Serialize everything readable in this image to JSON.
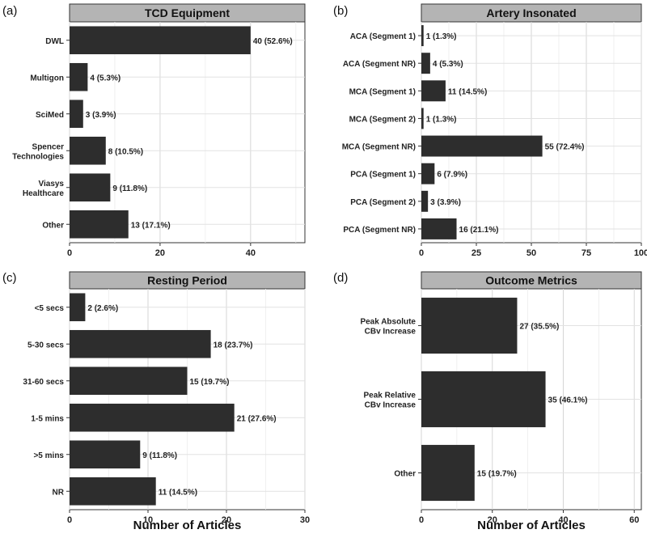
{
  "chart_data": [
    {
      "panel": "(a)",
      "type": "bar",
      "orientation": "horizontal",
      "title": "TCD Equipment",
      "xlabel": "",
      "categories": [
        "DWL",
        "Multigon",
        "SciMed",
        "Spencer Technologies",
        "Viasys Healthcare",
        "Other"
      ],
      "category_lines": [
        [
          "DWL"
        ],
        [
          "Multigon"
        ],
        [
          "SciMed"
        ],
        [
          "Spencer",
          "Technologies"
        ],
        [
          "Viasys",
          "Healthcare"
        ],
        [
          "Other"
        ]
      ],
      "values": [
        40,
        4,
        3,
        8,
        9,
        13
      ],
      "data_labels": [
        "40 (52.6%)",
        "4 (5.3%)",
        "3 (3.9%)",
        "8 (10.5%)",
        "9 (11.8%)",
        "13 (17.1%)"
      ],
      "xlim": [
        0,
        52
      ],
      "xticks": [
        0,
        20,
        40
      ],
      "grid": true
    },
    {
      "panel": "(b)",
      "type": "bar",
      "orientation": "horizontal",
      "title": "Artery Insonated",
      "xlabel": "",
      "categories": [
        "ACA (Segment 1)",
        "ACA (Segment NR)",
        "MCA (Segment 1)",
        "MCA (Segment 2)",
        "MCA (Segment NR)",
        "PCA (Segment 1)",
        "PCA (Segment 2)",
        "PCA (Segment NR)"
      ],
      "category_lines": [
        [
          "ACA (Segment 1)"
        ],
        [
          "ACA (Segment NR)"
        ],
        [
          "MCA (Segment 1)"
        ],
        [
          "MCA (Segment 2)"
        ],
        [
          "MCA (Segment NR)"
        ],
        [
          "PCA (Segment 1)"
        ],
        [
          "PCA (Segment 2)"
        ],
        [
          "PCA (Segment NR)"
        ]
      ],
      "values": [
        1,
        4,
        11,
        1,
        55,
        6,
        3,
        16
      ],
      "data_labels": [
        "1 (1.3%)",
        "4 (5.3%)",
        "11 (14.5%)",
        "1 (1.3%)",
        "55 (72.4%)",
        "6 (7.9%)",
        "3 (3.9%)",
        "16 (21.1%)"
      ],
      "xlim": [
        0,
        100
      ],
      "xticks": [
        0,
        25,
        50,
        75,
        100
      ],
      "grid": true
    },
    {
      "panel": "(c)",
      "type": "bar",
      "orientation": "horizontal",
      "title": "Resting Period",
      "xlabel": "Number of Articles",
      "categories": [
        "<5 secs",
        "5-30 secs",
        "31-60 secs",
        "1-5 mins",
        ">5 mins",
        "NR"
      ],
      "category_lines": [
        [
          "<5 secs"
        ],
        [
          "5-30 secs"
        ],
        [
          "31-60 secs"
        ],
        [
          "1-5 mins"
        ],
        [
          ">5 mins"
        ],
        [
          "NR"
        ]
      ],
      "values": [
        2,
        18,
        15,
        21,
        9,
        11
      ],
      "data_labels": [
        "2 (2.6%)",
        "18 (23.7%)",
        "15 (19.7%)",
        "21 (27.6%)",
        "9 (11.8%)",
        "11 (14.5%)"
      ],
      "xlim": [
        0,
        30
      ],
      "xticks": [
        0,
        10,
        20,
        30
      ],
      "grid": true
    },
    {
      "panel": "(d)",
      "type": "bar",
      "orientation": "horizontal",
      "title": "Outcome Metrics",
      "xlabel": "Number of Articles",
      "categories": [
        "Peak Absolute CBv Increase",
        "Peak Relative CBv Increase",
        "Other"
      ],
      "category_lines": [
        [
          "Peak Absolute",
          "CBv Increase"
        ],
        [
          "Peak Relative",
          "CBv Increase"
        ],
        [
          "Other"
        ]
      ],
      "values": [
        27,
        35,
        15
      ],
      "data_labels": [
        "27 (35.5%)",
        "35 (46.1%)",
        "15 (19.7%)"
      ],
      "xlim": [
        0,
        62
      ],
      "xticks": [
        0,
        20,
        40,
        60
      ],
      "grid": true
    }
  ]
}
